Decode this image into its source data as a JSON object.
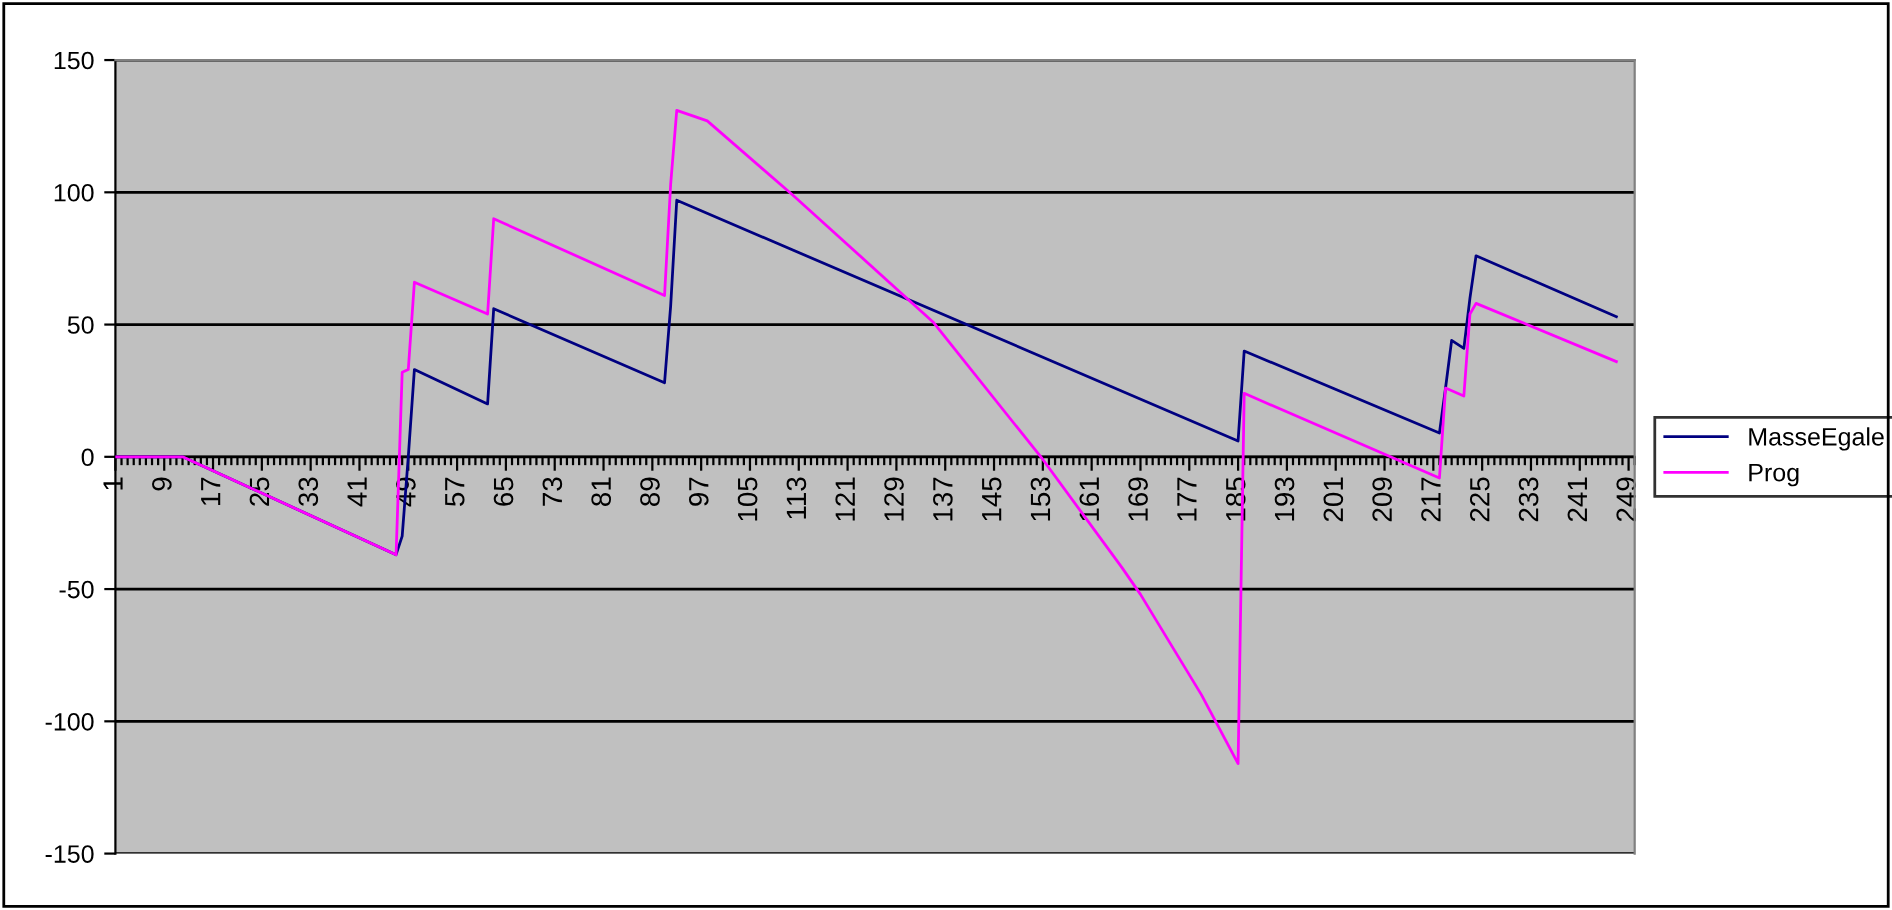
{
  "chart_data": {
    "type": "line",
    "xlim": [
      1,
      250
    ],
    "xticks": [
      1,
      9,
      17,
      25,
      33,
      41,
      49,
      57,
      65,
      73,
      81,
      89,
      97,
      105,
      113,
      121,
      129,
      137,
      145,
      153,
      161,
      169,
      177,
      185,
      193,
      201,
      209,
      217,
      225,
      233,
      241,
      249
    ],
    "ylim": [
      -150,
      150
    ],
    "yticks": [
      -150,
      -100,
      -50,
      0,
      50,
      100,
      150
    ],
    "grid": "y",
    "legend": "right",
    "marker": "none",
    "line_style": "solid",
    "series": [
      {
        "name": "MasseEgale",
        "color": "#000080",
        "x": [
          1,
          12,
          47,
          48,
          49,
          50,
          62,
          63,
          91,
          92,
          93,
          185,
          186,
          218,
          219,
          220,
          222,
          223,
          224,
          247
        ],
        "values": [
          0,
          0,
          -37,
          -30,
          0,
          33,
          20,
          56,
          28,
          57,
          97,
          6,
          40,
          9,
          26,
          44,
          41,
          60,
          76,
          53
        ]
      },
      {
        "name": "Prog",
        "color": "#ff00ff",
        "x": [
          1,
          12,
          47,
          48,
          49,
          50,
          62,
          63,
          91,
          92,
          93,
          98,
          112,
          135,
          153,
          166,
          169,
          179,
          185,
          186,
          218,
          219,
          222,
          223,
          224,
          247
        ],
        "values": [
          0,
          0,
          -37,
          32,
          33,
          66,
          54,
          90,
          61,
          103,
          131,
          127,
          99,
          51,
          -1,
          -42,
          -52,
          -90,
          -116,
          24,
          -8,
          26,
          23,
          54,
          58,
          36
        ]
      }
    ]
  }
}
